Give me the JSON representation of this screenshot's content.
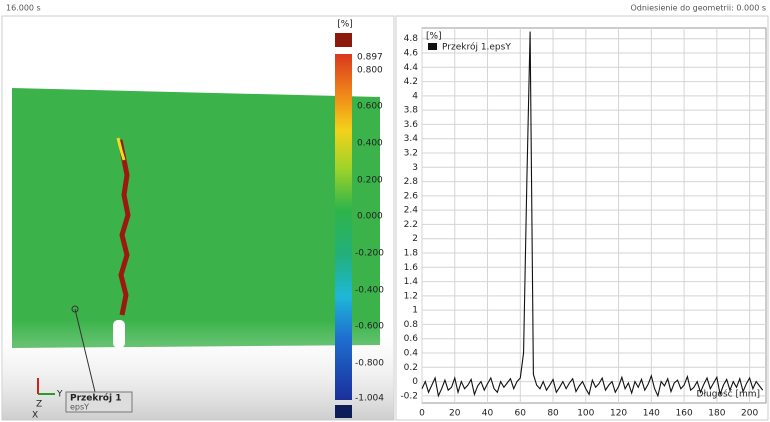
{
  "header": {
    "time": "16.000 s",
    "reference": "Odniesienie do geometrii: 0.000 s"
  },
  "viewport": {
    "colorbar": {
      "unit": "[%]",
      "labels": [
        "0.897",
        "0.800",
        "0.600",
        "0.400",
        "0.200",
        "0.000",
        "-0.200",
        "-0.400",
        "-0.600",
        "-0.800",
        "-1.004"
      ]
    },
    "section": {
      "name": "Przekrój 1",
      "quantity": "epsY"
    },
    "axes": {
      "y": "Y",
      "z": "Z",
      "x": "X"
    }
  },
  "chart_data": {
    "type": "line",
    "y_unit": "[%]",
    "x_label": "Długość [mm]",
    "xlim": [
      0,
      210
    ],
    "ylim": [
      -0.3,
      4.95
    ],
    "xticks": [
      0,
      20,
      40,
      60,
      80,
      100,
      120,
      140,
      160,
      180,
      200
    ],
    "yticks": [
      -0.2,
      0,
      0.2,
      0.4,
      0.6,
      0.8,
      1,
      1.2,
      1.4,
      1.6,
      1.8,
      2,
      2.2,
      2.4,
      2.6,
      2.8,
      3,
      3.2,
      3.4,
      3.6,
      3.8,
      4,
      4.2,
      4.4,
      4.6,
      4.8
    ],
    "grid": true,
    "series": [
      {
        "name": "Przekrój 1.epsY",
        "color": "#111111",
        "x": [
          0,
          2,
          4,
          6,
          8,
          10,
          12,
          14,
          16,
          18,
          20,
          22,
          24,
          26,
          28,
          30,
          32,
          34,
          36,
          38,
          40,
          42,
          44,
          46,
          48,
          50,
          52,
          54,
          56,
          58,
          60,
          62,
          64,
          66,
          68,
          70,
          72,
          74,
          76,
          78,
          80,
          82,
          84,
          86,
          88,
          90,
          92,
          94,
          96,
          98,
          100,
          102,
          104,
          106,
          108,
          110,
          112,
          114,
          116,
          118,
          120,
          122,
          124,
          126,
          128,
          130,
          132,
          134,
          136,
          138,
          140,
          142,
          144,
          146,
          148,
          150,
          152,
          154,
          156,
          158,
          160,
          162,
          164,
          166,
          168,
          170,
          172,
          174,
          176,
          178,
          180,
          182,
          184,
          186,
          188,
          190,
          192,
          194,
          196,
          198,
          200,
          202,
          204,
          206,
          208
        ],
        "values": [
          -0.1,
          0.0,
          -0.15,
          -0.05,
          0.05,
          -0.2,
          -0.1,
          0.02,
          -0.12,
          -0.08,
          0.05,
          -0.15,
          0.0,
          -0.1,
          -0.05,
          0.03,
          -0.18,
          -0.06,
          0.0,
          -0.12,
          -0.03,
          0.05,
          -0.1,
          -0.15,
          0.0,
          -0.08,
          -0.02,
          0.04,
          -0.1,
          0.0,
          0.05,
          0.4,
          2.8,
          4.9,
          0.1,
          -0.05,
          -0.1,
          0.0,
          -0.12,
          -0.05,
          0.03,
          -0.15,
          -0.08,
          0.0,
          -0.1,
          -0.02,
          0.04,
          -0.14,
          -0.06,
          0.0,
          -0.1,
          -0.18,
          0.02,
          -0.08,
          -0.03,
          0.05,
          -0.12,
          -0.05,
          0.0,
          -0.15,
          -0.07,
          0.06,
          -0.1,
          -0.02,
          -0.16,
          0.0,
          -0.08,
          0.03,
          -0.12,
          -0.04,
          0.08,
          -0.1,
          -0.2,
          0.0,
          -0.06,
          0.04,
          -0.14,
          -0.02,
          0.02,
          -0.1,
          -0.05,
          0.07,
          -0.12,
          -0.08,
          0.0,
          -0.15,
          -0.04,
          0.05,
          -0.1,
          -0.02,
          0.06,
          -0.18,
          -0.05,
          0.03,
          -0.12,
          0.0,
          -0.08,
          0.04,
          -0.14,
          -0.03,
          0.05,
          -0.1,
          0.0,
          -0.06,
          -0.12
        ]
      }
    ]
  }
}
